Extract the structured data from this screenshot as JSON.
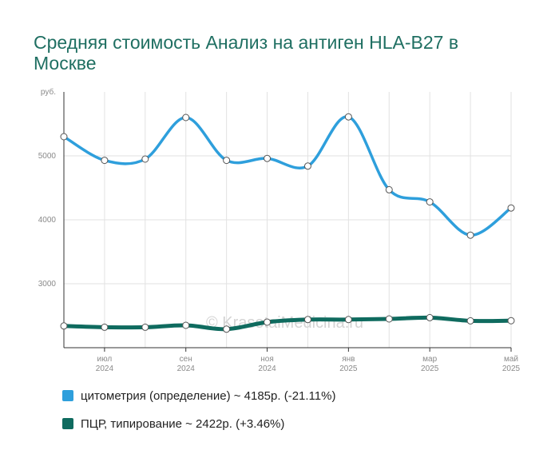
{
  "page": {
    "title": "Средняя стоимость Анализ на антиген HLA-B27 в Москве",
    "watermark": "© KrasotaiMedicina.ru"
  },
  "chart_data": {
    "type": "line",
    "title": "Средняя стоимость Анализ на антиген HLA-B27 в Москве",
    "ylabel": "руб.",
    "ylim": [
      2000,
      6000
    ],
    "yticks": [
      3000,
      4000,
      5000
    ],
    "x": [
      "2024-06",
      "2024-07",
      "2024-08",
      "2024-09",
      "2024-10",
      "2024-11",
      "2024-12",
      "2025-01",
      "2025-02",
      "2025-03",
      "2025-04",
      "2025-05"
    ],
    "xtick_labels": [
      {
        "month": "июл",
        "year": "2024",
        "index": 1
      },
      {
        "month": "сен",
        "year": "2024",
        "index": 3
      },
      {
        "month": "ноя",
        "year": "2024",
        "index": 5
      },
      {
        "month": "янв",
        "year": "2025",
        "index": 7
      },
      {
        "month": "мар",
        "year": "2025",
        "index": 9
      },
      {
        "month": "май",
        "year": "2025",
        "index": 11
      }
    ],
    "grid": true,
    "legend_position": "bottom",
    "series": [
      {
        "name": "цитометрия (определение)",
        "legend_text": "цитометрия (определение) ~ 4185р. (-21.11%)",
        "color": "#2e9fdc",
        "values": [
          5300,
          4930,
          4950,
          5600,
          4930,
          4960,
          4840,
          5610,
          4470,
          4280,
          3760,
          4185
        ]
      },
      {
        "name": "ПЦР, типирование",
        "legend_text": "ПЦР, типирование ~ 2422р. (+3.46%)",
        "color": "#0f6b5f",
        "values": [
          2340,
          2320,
          2320,
          2350,
          2290,
          2400,
          2440,
          2440,
          2450,
          2470,
          2420,
          2422
        ]
      }
    ]
  }
}
